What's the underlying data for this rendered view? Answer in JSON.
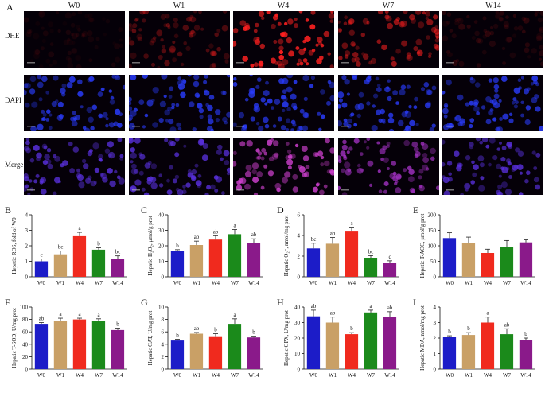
{
  "figure": {
    "panel_A": "A",
    "columns": [
      "W0",
      "W1",
      "W4",
      "W7",
      "W14"
    ],
    "rows": [
      "DHE",
      "DAPI",
      "Merge"
    ]
  },
  "colors": {
    "W0": "#1c1cc8",
    "W1": "#c9a066",
    "W4": "#f02a1e",
    "W7": "#1b8a1b",
    "W14": "#8a1a8a",
    "DHE": "#ff2020",
    "DAPI": "#2a3cff",
    "Merge": "#c040e0"
  },
  "microscopy_intensity": {
    "DHE": [
      0.08,
      0.35,
      0.95,
      0.6,
      0.15
    ],
    "DAPI": [
      0.85,
      0.85,
      0.85,
      0.85,
      0.85
    ],
    "Merge_red": [
      0.15,
      0.4,
      0.9,
      0.6,
      0.2
    ]
  },
  "chart_data": [
    {
      "panel": "B",
      "type": "bar",
      "ylabel": "Hepatic ROS, fold of W0",
      "categories": [
        "W0",
        "W1",
        "W4",
        "W7",
        "W14"
      ],
      "values": [
        1.0,
        1.45,
        2.62,
        1.75,
        1.15
      ],
      "errors": [
        0.15,
        0.22,
        0.25,
        0.12,
        0.2
      ],
      "letters": [
        "c",
        "bc",
        "a",
        "b",
        "bc"
      ],
      "ylim": [
        0,
        4
      ],
      "yticks": [
        "0",
        "1",
        "2",
        "3",
        "4"
      ]
    },
    {
      "panel": "C",
      "type": "bar",
      "ylabel": "Hepatic H₂O₂, μmol/g prot",
      "categories": [
        "W0",
        "W1",
        "W4",
        "W7",
        "W14"
      ],
      "values": [
        16.5,
        20.5,
        24.0,
        27.5,
        22.0
      ],
      "errors": [
        1.0,
        2.5,
        2.5,
        3.0,
        2.5
      ],
      "letters": [
        "b",
        "ab",
        "ab",
        "a",
        "ab"
      ],
      "ylim": [
        0,
        40
      ],
      "yticks": [
        "0",
        "10",
        "20",
        "30",
        "40"
      ]
    },
    {
      "panel": "D",
      "type": "bar",
      "ylabel": "Hepatic O₂⁻, nmol/mg prot",
      "categories": [
        "W0",
        "W1",
        "W4",
        "W7",
        "W14"
      ],
      "values": [
        2.75,
        3.2,
        4.45,
        1.85,
        1.35
      ],
      "errors": [
        0.5,
        0.6,
        0.35,
        0.2,
        0.2
      ],
      "letters": [
        "bc",
        "ab",
        "a",
        "bc",
        "c"
      ],
      "ylim": [
        0,
        6
      ],
      "yticks": [
        "0",
        "2",
        "4",
        "6"
      ]
    },
    {
      "panel": "E",
      "type": "bar",
      "ylabel": "Hepatic T-AOC, μmol/g prot",
      "categories": [
        "W0",
        "W1",
        "W4",
        "W7",
        "W14"
      ],
      "values": [
        125,
        108,
        77,
        95,
        111
      ],
      "errors": [
        17,
        20,
        12,
        22,
        8
      ],
      "letters": [
        "",
        "",
        "",
        "",
        ""
      ],
      "ylim": [
        0,
        200
      ],
      "yticks": [
        "0",
        "50",
        "100",
        "150",
        "200"
      ]
    },
    {
      "panel": "F",
      "type": "bar",
      "ylabel": "Hepatic T-SOD, U/mg prot",
      "categories": [
        "W0",
        "W1",
        "W4",
        "W7",
        "W14"
      ],
      "values": [
        73,
        78,
        80,
        77,
        63
      ],
      "errors": [
        2,
        4,
        2,
        4,
        3
      ],
      "letters": [
        "ab",
        "a",
        "a",
        "a",
        "b"
      ],
      "ylim": [
        0,
        100
      ],
      "yticks": [
        "0",
        "20",
        "40",
        "60",
        "80",
        "100"
      ]
    },
    {
      "panel": "G",
      "type": "bar",
      "ylabel": "Hepatic CAT, U/mg prot",
      "categories": [
        "W0",
        "W1",
        "W4",
        "W7",
        "W14"
      ],
      "values": [
        4.6,
        5.7,
        5.3,
        7.3,
        5.1
      ],
      "errors": [
        0.2,
        0.2,
        0.4,
        0.8,
        0.2
      ],
      "letters": [
        "b",
        "ab",
        "b",
        "a",
        "b"
      ],
      "ylim": [
        0,
        10
      ],
      "yticks": [
        "0",
        "2",
        "4",
        "6",
        "8",
        "10"
      ]
    },
    {
      "panel": "H",
      "type": "bar",
      "ylabel": "Hepatic GPX, U/mg prot",
      "categories": [
        "W0",
        "W1",
        "W4",
        "W7",
        "W14"
      ],
      "values": [
        34,
        30,
        22.5,
        36.5,
        33.5
      ],
      "errors": [
        4,
        3.5,
        1,
        1.5,
        3.5
      ],
      "letters": [
        "ab",
        "ab",
        "b",
        "a",
        "ab"
      ],
      "ylim": [
        0,
        40
      ],
      "yticks": [
        "0",
        "10",
        "20",
        "30",
        "40"
      ]
    },
    {
      "panel": "I",
      "type": "bar",
      "ylabel": "Hepatic MDA, nmol/mg prot",
      "categories": [
        "W0",
        "W1",
        "W4",
        "W7",
        "W14"
      ],
      "values": [
        2.05,
        2.2,
        3.0,
        2.25,
        1.85
      ],
      "errors": [
        0.1,
        0.15,
        0.35,
        0.35,
        0.15
      ],
      "letters": [
        "b",
        "b",
        "a",
        "ab",
        "b"
      ],
      "ylim": [
        0,
        4
      ],
      "yticks": [
        "0",
        "1",
        "2",
        "3",
        "4"
      ]
    }
  ]
}
